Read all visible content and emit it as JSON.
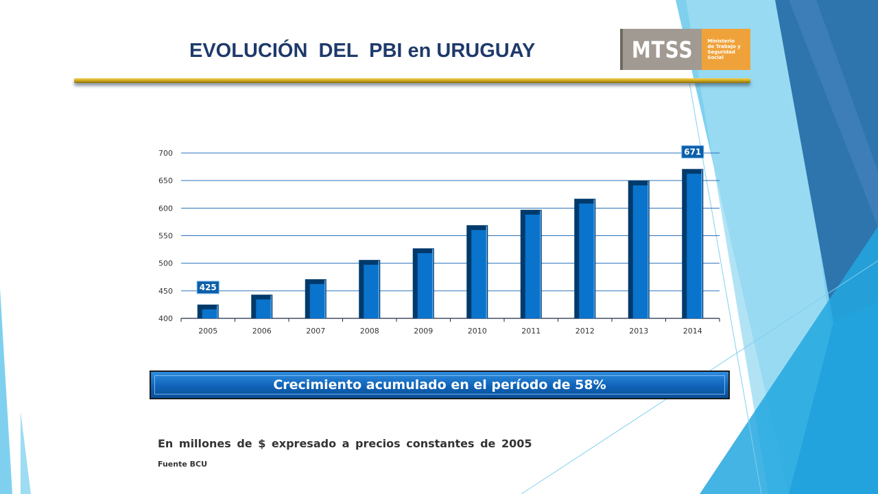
{
  "slide": {
    "title": "EVOLUCIÓN  DEL  PBI en URUGUAY",
    "logo": {
      "acronym": "MTSS",
      "lines": [
        "Ministerio",
        "de Trabajo y",
        "Seguridad",
        "Social"
      ]
    },
    "banner_text": "Crecimiento acumulado en el período de 58%",
    "note": "En  millones de $ expresado a precios constantes de 2005",
    "source": "Fuente BCU"
  },
  "colors": {
    "title": "#1f3a6b",
    "bar_front": "#0a73cc",
    "bar_dark": "#003a6b",
    "gridline": "#2a70b8",
    "accent_gold": "#c9a219",
    "logo_gray": "#a19a92",
    "logo_orange": "#f0a23a"
  },
  "chart_data": {
    "type": "bar",
    "categories": [
      "2005",
      "2006",
      "2007",
      "2008",
      "2009",
      "2010",
      "2011",
      "2012",
      "2013",
      "2014"
    ],
    "values": [
      425,
      443,
      471,
      506,
      527,
      569,
      597,
      617,
      650,
      671
    ],
    "data_labels": [
      {
        "index": 0,
        "text": "425"
      },
      {
        "index": 9,
        "text": "671"
      }
    ],
    "ylim": [
      400,
      700
    ],
    "yticks": [
      400,
      450,
      500,
      550,
      600,
      650,
      700
    ],
    "grid": true,
    "xlabel": "",
    "ylabel": ""
  }
}
